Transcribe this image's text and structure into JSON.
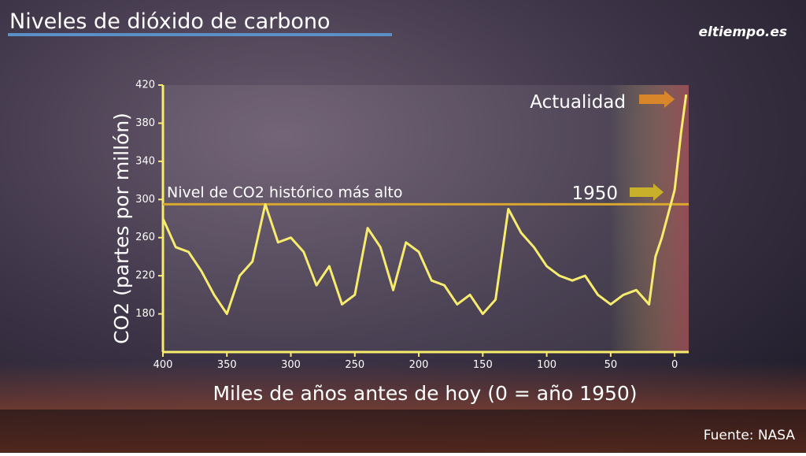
{
  "chart_data": {
    "type": "line",
    "title": "Niveles de dióxido de carbono",
    "logo": "eltiempo.es",
    "source": "Fuente: NASA",
    "x_label": "Miles de años antes de hoy (0 = año 1950)",
    "y_label": "CO2 (partes por millón)",
    "x": [
      400,
      390,
      380,
      370,
      360,
      350,
      340,
      330,
      320,
      310,
      300,
      290,
      280,
      270,
      260,
      250,
      240,
      230,
      220,
      210,
      200,
      190,
      180,
      170,
      160,
      150,
      140,
      130,
      120,
      110,
      100,
      90,
      80,
      70,
      60,
      50,
      40,
      30,
      20,
      15,
      10,
      5,
      0,
      -5,
      -9
    ],
    "series": [
      {
        "name": "CO2",
        "color": "#f7ec6e",
        "values": [
          280,
          250,
          245,
          225,
          200,
          180,
          220,
          235,
          295,
          255,
          260,
          245,
          210,
          230,
          190,
          200,
          270,
          250,
          205,
          255,
          245,
          215,
          210,
          190,
          200,
          180,
          195,
          290,
          265,
          250,
          230,
          220,
          215,
          220,
          200,
          190,
          200,
          205,
          190,
          240,
          260,
          285,
          310,
          370,
          410
        ]
      }
    ],
    "reference_line": {
      "value": 295,
      "label": "Nivel de CO2 histórico más alto",
      "color": "#d9a630"
    },
    "annotations": [
      "Actualidad",
      "1950"
    ],
    "xlim": [
      400,
      -11
    ],
    "ylim": [
      140,
      420
    ],
    "xticks": [
      400,
      350,
      300,
      250,
      200,
      150,
      100,
      50,
      0
    ],
    "yticks": [
      180,
      220,
      260,
      300,
      340,
      380,
      420
    ]
  }
}
